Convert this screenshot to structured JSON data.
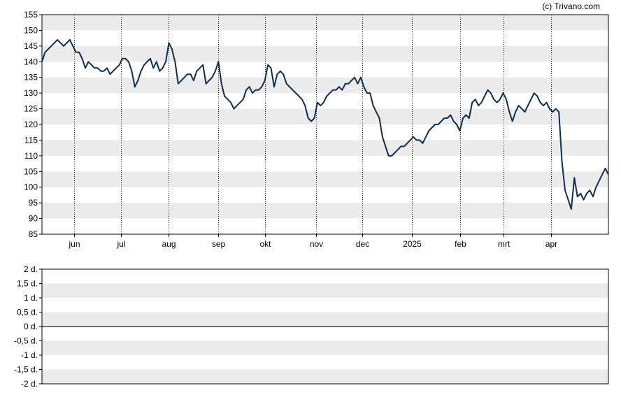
{
  "copyright": "(c) Trivano.com",
  "chart_data": [
    {
      "type": "line",
      "title": "",
      "xlabel": "",
      "ylabel": "",
      "ylim": [
        85,
        155
      ],
      "yticks": [
        "155",
        "150",
        "145",
        "140",
        "135",
        "130",
        "125",
        "120",
        "115",
        "110",
        "105",
        "100",
        "95",
        "90",
        "85"
      ],
      "xticks": [
        {
          "label": "jun",
          "day": 21
        },
        {
          "label": "jul",
          "day": 51
        },
        {
          "label": "aug",
          "day": 82
        },
        {
          "label": "sep",
          "day": 114
        },
        {
          "label": "okt",
          "day": 144
        },
        {
          "label": "nov",
          "day": 177
        },
        {
          "label": "dec",
          "day": 207
        },
        {
          "label": "2025",
          "day": 239
        },
        {
          "label": "feb",
          "day": 270
        },
        {
          "label": "mrt",
          "day": 298
        },
        {
          "label": "apr",
          "day": 329
        }
      ],
      "x_range_days": [
        0,
        366
      ],
      "grid": "horizontal bands, dotted vertical lines at month ticks",
      "line_color": "#0d2e4d",
      "series": [
        {
          "points": [
            [
              0,
              140
            ],
            [
              2,
              143
            ],
            [
              4,
              144
            ],
            [
              6,
              145
            ],
            [
              8,
              146
            ],
            [
              10,
              147
            ],
            [
              12,
              146
            ],
            [
              14,
              145
            ],
            [
              16,
              146
            ],
            [
              18,
              147
            ],
            [
              20,
              145
            ],
            [
              22,
              143
            ],
            [
              24,
              143
            ],
            [
              26,
              141
            ],
            [
              28,
              138
            ],
            [
              30,
              140
            ],
            [
              32,
              139
            ],
            [
              34,
              138
            ],
            [
              36,
              138
            ],
            [
              38,
              137
            ],
            [
              40,
              137
            ],
            [
              42,
              138
            ],
            [
              44,
              136
            ],
            [
              46,
              137
            ],
            [
              48,
              138
            ],
            [
              50,
              139
            ],
            [
              52,
              141
            ],
            [
              54,
              141
            ],
            [
              56,
              140
            ],
            [
              58,
              137
            ],
            [
              60,
              132
            ],
            [
              62,
              134
            ],
            [
              64,
              137
            ],
            [
              66,
              139
            ],
            [
              68,
              140
            ],
            [
              70,
              141
            ],
            [
              72,
              138
            ],
            [
              74,
              140
            ],
            [
              76,
              137
            ],
            [
              78,
              138
            ],
            [
              80,
              140
            ],
            [
              82,
              146
            ],
            [
              84,
              144
            ],
            [
              86,
              140
            ],
            [
              88,
              133
            ],
            [
              90,
              134
            ],
            [
              92,
              135
            ],
            [
              94,
              136
            ],
            [
              96,
              136
            ],
            [
              98,
              134
            ],
            [
              100,
              137
            ],
            [
              102,
              138
            ],
            [
              104,
              139
            ],
            [
              106,
              133
            ],
            [
              108,
              134
            ],
            [
              110,
              135
            ],
            [
              112,
              137
            ],
            [
              114,
              140
            ],
            [
              116,
              133
            ],
            [
              118,
              129
            ],
            [
              120,
              128
            ],
            [
              122,
              127
            ],
            [
              124,
              125
            ],
            [
              126,
              126
            ],
            [
              128,
              127
            ],
            [
              130,
              128
            ],
            [
              132,
              131
            ],
            [
              134,
              132
            ],
            [
              136,
              130
            ],
            [
              138,
              131
            ],
            [
              140,
              131
            ],
            [
              142,
              132
            ],
            [
              144,
              134
            ],
            [
              146,
              139
            ],
            [
              148,
              138
            ],
            [
              150,
              132
            ],
            [
              152,
              136
            ],
            [
              154,
              137
            ],
            [
              156,
              136
            ],
            [
              158,
              133
            ],
            [
              160,
              132
            ],
            [
              162,
              131
            ],
            [
              164,
              130
            ],
            [
              166,
              129
            ],
            [
              168,
              128
            ],
            [
              170,
              126
            ],
            [
              172,
              122
            ],
            [
              174,
              121
            ],
            [
              176,
              122
            ],
            [
              178,
              127
            ],
            [
              180,
              126
            ],
            [
              182,
              127
            ],
            [
              184,
              129
            ],
            [
              186,
              130
            ],
            [
              188,
              131
            ],
            [
              190,
              131
            ],
            [
              192,
              132
            ],
            [
              194,
              131
            ],
            [
              196,
              133
            ],
            [
              198,
              133
            ],
            [
              200,
              134
            ],
            [
              202,
              135
            ],
            [
              204,
              133
            ],
            [
              206,
              135
            ],
            [
              208,
              132
            ],
            [
              210,
              130
            ],
            [
              212,
              130
            ],
            [
              214,
              126
            ],
            [
              216,
              124
            ],
            [
              218,
              122
            ],
            [
              220,
              116
            ],
            [
              222,
              113
            ],
            [
              224,
              110
            ],
            [
              226,
              110
            ],
            [
              228,
              111
            ],
            [
              230,
              112
            ],
            [
              232,
              113
            ],
            [
              234,
              113
            ],
            [
              236,
              114
            ],
            [
              238,
              115
            ],
            [
              240,
              116
            ],
            [
              242,
              115
            ],
            [
              244,
              115
            ],
            [
              246,
              114
            ],
            [
              248,
              116
            ],
            [
              250,
              118
            ],
            [
              252,
              119
            ],
            [
              254,
              120
            ],
            [
              256,
              120
            ],
            [
              258,
              121
            ],
            [
              260,
              122
            ],
            [
              262,
              122
            ],
            [
              264,
              123
            ],
            [
              266,
              121
            ],
            [
              268,
              120
            ],
            [
              270,
              118
            ],
            [
              272,
              122
            ],
            [
              274,
              123
            ],
            [
              276,
              122
            ],
            [
              278,
              127
            ],
            [
              280,
              128
            ],
            [
              282,
              126
            ],
            [
              284,
              127
            ],
            [
              286,
              129
            ],
            [
              288,
              131
            ],
            [
              290,
              130
            ],
            [
              292,
              128
            ],
            [
              294,
              127
            ],
            [
              296,
              128
            ],
            [
              298,
              130
            ],
            [
              300,
              128
            ],
            [
              302,
              124
            ],
            [
              304,
              121
            ],
            [
              306,
              124
            ],
            [
              308,
              126
            ],
            [
              310,
              125
            ],
            [
              312,
              124
            ],
            [
              314,
              126
            ],
            [
              316,
              128
            ],
            [
              318,
              130
            ],
            [
              320,
              129
            ],
            [
              322,
              127
            ],
            [
              324,
              126
            ],
            [
              326,
              127
            ],
            [
              328,
              125
            ],
            [
              330,
              124
            ],
            [
              332,
              125
            ],
            [
              334,
              124
            ],
            [
              336,
              108
            ],
            [
              338,
              99
            ],
            [
              340,
              96
            ],
            [
              342,
              93
            ],
            [
              344,
              103
            ],
            [
              346,
              97
            ],
            [
              348,
              98
            ],
            [
              350,
              96
            ],
            [
              352,
              98
            ],
            [
              354,
              99
            ],
            [
              356,
              97
            ],
            [
              358,
              100
            ],
            [
              360,
              102
            ],
            [
              362,
              104
            ],
            [
              364,
              106
            ],
            [
              366,
              104
            ]
          ]
        }
      ]
    },
    {
      "type": "line",
      "title": "",
      "ylim": [
        -2,
        2
      ],
      "yticks": [
        "2 d.",
        "1,5 d.",
        "1 d.",
        "0,5 d.",
        "0 d.",
        "-0,5 d.",
        "-1 d.",
        "-1,5 d.",
        "-2 d."
      ],
      "baseline": "0 d.",
      "series": []
    }
  ]
}
